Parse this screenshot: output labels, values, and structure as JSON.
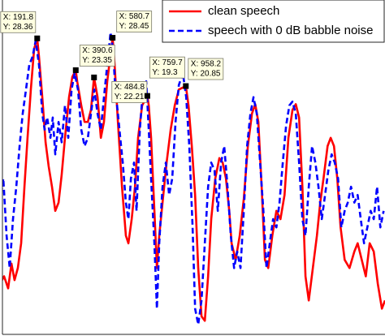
{
  "chart_data": {
    "type": "line",
    "xlim": [
      0,
      1985
    ],
    "ylim": [
      -18.5,
      34.4
    ],
    "legend": "northeast",
    "series": [
      {
        "name": "clean speech",
        "color": "#ff0000",
        "dash": "solid",
        "x": [
          0,
          21,
          42,
          59,
          75,
          92,
          109,
          126,
          142,
          159,
          176,
          191.8,
          201,
          218,
          235,
          251,
          268,
          285,
          302,
          318,
          335,
          356,
          373,
          390.6,
          398,
          419,
          436,
          453,
          469,
          484.8,
          503,
          520,
          536,
          553,
          580.7,
          591,
          608,
          629,
          649,
          662,
          679,
          696,
          712,
          733,
          759.7,
          767,
          779,
          796,
          809,
          821,
          838,
          859,
          880,
          901,
          922,
          958.2,
          972,
          989,
          1006,
          1022,
          1039,
          1056,
          1073,
          1089,
          1110,
          1131,
          1148,
          1165,
          1182,
          1194,
          1215,
          1236,
          1257,
          1278,
          1299,
          1316,
          1332,
          1349,
          1366,
          1383,
          1404,
          1425,
          1446,
          1467,
          1487,
          1508,
          1525,
          1542,
          1559,
          1575,
          1592,
          1613,
          1634,
          1651,
          1668,
          1689,
          1705,
          1722,
          1739,
          1756,
          1777,
          1802,
          1827,
          1844,
          1865,
          1886,
          1906,
          1927,
          1948,
          1969,
          1985
        ],
        "values": [
          -10.3,
          -9.1,
          -11.0,
          -7.1,
          -9.7,
          -7.8,
          -3.9,
          5.0,
          12.7,
          20.3,
          26.7,
          28.36,
          25.5,
          19.1,
          12.0,
          8.2,
          5.0,
          1.2,
          2.5,
          6.9,
          12.7,
          19.1,
          22.3,
          23.35,
          21.6,
          17.8,
          15.2,
          15.2,
          17.1,
          22.21,
          19.1,
          12.7,
          15.2,
          21.6,
          28.45,
          24.2,
          15.2,
          5.0,
          -2.7,
          -3.9,
          -0.1,
          5.0,
          12.7,
          17.8,
          19.3,
          17.8,
          12.7,
          1.2,
          -7.8,
          -2.7,
          2.5,
          8.8,
          14.0,
          17.8,
          20.3,
          20.85,
          17.8,
          11.4,
          3.7,
          -7.8,
          -15.4,
          -16.1,
          -9.1,
          -0.1,
          6.3,
          9.5,
          8.8,
          6.3,
          1.2,
          -3.9,
          -6.5,
          -2.7,
          3.1,
          11.4,
          16.5,
          18.0,
          15.2,
          5.0,
          -6.5,
          -7.8,
          -2.7,
          1.2,
          -0.1,
          3.7,
          12.7,
          17.1,
          18.0,
          15.9,
          5.0,
          -9.1,
          -12.9,
          -7.8,
          -2.7,
          2.5,
          6.3,
          11.4,
          12.7,
          11.4,
          6.3,
          -1.4,
          -6.5,
          -7.8,
          -5.2,
          -3.9,
          -6.5,
          -9.1,
          -3.9,
          -5.2,
          -10.3,
          -14.2,
          -12.9
        ]
      },
      {
        "name": "speech with 0 dB babble noise",
        "color": "#0000ff",
        "dash": "dashed",
        "x": [
          0,
          17,
          34,
          50,
          67,
          84,
          101,
          117,
          134,
          151,
          168,
          184,
          201,
          218,
          230,
          243,
          260,
          272,
          285,
          302,
          318,
          335,
          352,
          369,
          385,
          402,
          419,
          436,
          453,
          469,
          486,
          503,
          520,
          536,
          553,
          570,
          582,
          595,
          608,
          620,
          633,
          649,
          662,
          675,
          691,
          704,
          721,
          737,
          754,
          767,
          779,
          796,
          809,
          821,
          838,
          855,
          872,
          888,
          905,
          922,
          943,
          960,
          976,
          993,
          1006,
          1022,
          1039,
          1056,
          1073,
          1089,
          1106,
          1123,
          1140,
          1156,
          1173,
          1190,
          1207,
          1223,
          1240,
          1257,
          1274,
          1291,
          1307,
          1324,
          1341,
          1358,
          1374,
          1391,
          1408,
          1425,
          1441,
          1458,
          1475,
          1492,
          1508,
          1525,
          1542,
          1559,
          1575,
          1592,
          1609,
          1626,
          1642,
          1659,
          1676,
          1693,
          1710,
          1726,
          1743,
          1760,
          1777,
          1793,
          1810,
          1827,
          1844,
          1860,
          1877,
          1894,
          1911,
          1927,
          1944,
          1961,
          1978
        ],
        "values": [
          2.5,
          6.3,
          -2.7,
          -7.8,
          -0.1,
          5.0,
          11.4,
          16.5,
          20.3,
          24.2,
          25.5,
          28.0,
          24.2,
          16.5,
          14.0,
          15.9,
          12.7,
          15.9,
          10.1,
          15.2,
          12.0,
          17.8,
          12.7,
          20.3,
          22.9,
          20.3,
          14.0,
          11.4,
          12.7,
          16.5,
          20.3,
          16.5,
          14.0,
          19.1,
          24.2,
          29.3,
          26.7,
          20.3,
          16.5,
          12.7,
          8.8,
          2.5,
          -0.1,
          6.3,
          8.8,
          1.2,
          14.0,
          20.3,
          21.6,
          14.0,
          6.3,
          -3.9,
          -14.2,
          -3.9,
          5.0,
          8.8,
          3.7,
          6.3,
          15.2,
          21.0,
          22.9,
          19.1,
          11.4,
          -1.4,
          -14.2,
          -16.7,
          -12.9,
          -3.9,
          5.0,
          8.8,
          7.6,
          1.2,
          8.8,
          11.4,
          5.0,
          -2.7,
          -7.8,
          -5.2,
          -7.8,
          1.2,
          11.4,
          16.5,
          19.1,
          16.5,
          8.8,
          1.2,
          -7.8,
          -3.9,
          -0.1,
          -1.4,
          2.5,
          8.8,
          14.6,
          17.8,
          18.4,
          16.5,
          8.8,
          -0.1,
          -2.7,
          5.0,
          11.4,
          8.8,
          5.0,
          -0.1,
          3.7,
          7.6,
          10.1,
          8.8,
          6.3,
          -1.4,
          1.2,
          2.5,
          5.0,
          2.5,
          3.7,
          -0.1,
          -3.9,
          -1.4,
          1.2,
          -0.1,
          5.0,
          -1.4,
          1.2
        ]
      }
    ],
    "datatips": [
      {
        "x": 191.8,
        "y": 28.36,
        "x_label": "X: 191.8",
        "y_label": "Y: 28.36"
      },
      {
        "x": 390.6,
        "y": 23.35,
        "x_label": "X: 390.6",
        "y_label": "Y: 23.35"
      },
      {
        "x": 484.8,
        "y": 22.21,
        "x_label": "X: 484.8",
        "y_label": "Y: 22.21"
      },
      {
        "x": 580.7,
        "y": 28.45,
        "x_label": "X: 580.7",
        "y_label": "Y: 28.45"
      },
      {
        "x": 759.7,
        "y": 19.3,
        "x_label": "X: 759.7",
        "y_label": "Y: 19.3"
      },
      {
        "x": 958.2,
        "y": 20.85,
        "x_label": "X: 958.2",
        "y_label": "Y: 20.85"
      }
    ]
  }
}
